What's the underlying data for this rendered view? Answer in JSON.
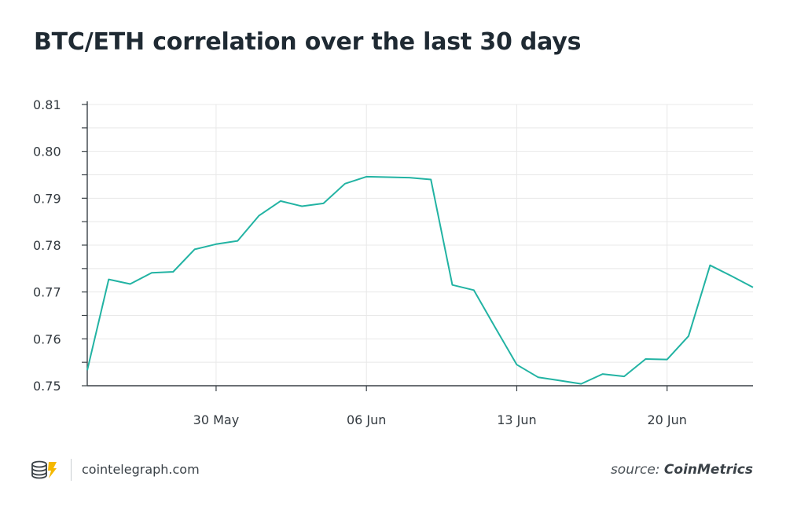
{
  "title": "BTC/ETH correlation over the last 30 days",
  "footer": {
    "site": "cointelegraph.com",
    "source_prefix": "source:",
    "source_name": "CoinMetrics"
  },
  "colors": {
    "line": "#22b3a3",
    "axis": "#3a4147",
    "grid": "#e8e8e8",
    "logo": "#f5b800"
  },
  "chart_data": {
    "type": "line",
    "title": "BTC/ETH correlation over the last 30 days",
    "xlabel": "",
    "ylabel": "",
    "ylim": [
      0.75,
      0.81
    ],
    "ytick_labels": [
      "0.81",
      "0.80",
      "0.79",
      "0.78",
      "0.77",
      "0.76",
      "0.75"
    ],
    "yticks": [
      0.81,
      0.8,
      0.79,
      0.78,
      0.77,
      0.76,
      0.75
    ],
    "xlim": [
      "2021-05-24",
      "2021-06-24"
    ],
    "xticks": [
      {
        "label": "30 May",
        "date": "2021-05-30"
      },
      {
        "label": "06 Jun",
        "date": "2021-06-06"
      },
      {
        "label": "13 Jun",
        "date": "2021-06-13"
      },
      {
        "label": "20 Jun",
        "date": "2021-06-20"
      }
    ],
    "grid": true,
    "series": [
      {
        "x": [
          "2021-05-24",
          "2021-05-25",
          "2021-05-26",
          "2021-05-27",
          "2021-05-28",
          "2021-05-29",
          "2021-05-30",
          "2021-05-31",
          "2021-06-01",
          "2021-06-02",
          "2021-06-03",
          "2021-06-04",
          "2021-06-05",
          "2021-06-06",
          "2021-06-07",
          "2021-06-08",
          "2021-06-09",
          "2021-06-10",
          "2021-06-11",
          "2021-06-12",
          "2021-06-13",
          "2021-06-14",
          "2021-06-15",
          "2021-06-16",
          "2021-06-17",
          "2021-06-18",
          "2021-06-19",
          "2021-06-20",
          "2021-06-21",
          "2021-06-22",
          "2021-06-23",
          "2021-06-24"
        ],
        "values": [
          0.7533,
          0.7727,
          0.7717,
          0.7741,
          0.7743,
          0.7791,
          0.7802,
          0.7809,
          0.7863,
          0.7894,
          0.7883,
          0.7889,
          0.7931,
          0.7946,
          0.7945,
          0.7944,
          0.794,
          0.7715,
          0.7704,
          0.7624,
          0.7545,
          0.7518,
          0.7511,
          0.7504,
          0.7525,
          0.752,
          0.7557,
          0.7556,
          0.7606,
          0.7757,
          0.7734,
          0.771
        ]
      }
    ]
  }
}
